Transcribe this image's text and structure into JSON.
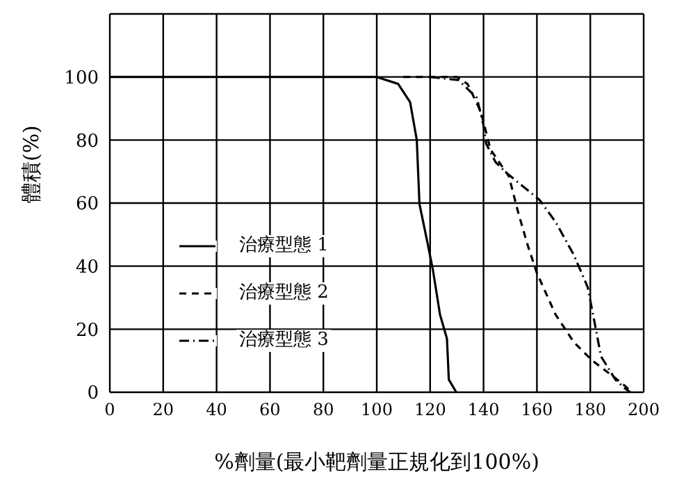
{
  "chart_data": {
    "type": "line",
    "xlabel": "%劑量(最小靶劑量正規化到100%)",
    "ylabel": "體積(%)",
    "xlim": [
      0,
      200
    ],
    "xticks": [
      0,
      20,
      40,
      60,
      80,
      100,
      120,
      140,
      160,
      180,
      200
    ],
    "ylim": [
      0,
      120
    ],
    "yticks": [
      0,
      20,
      40,
      60,
      80,
      100,
      {
        "value": 120,
        "label": null
      }
    ],
    "grid": true,
    "legend": "center left",
    "marker": "none",
    "series": [
      {
        "name": "治療型態 1",
        "color": "#000000",
        "line_style": "solid",
        "x": [
          0,
          100,
          108,
          112.5,
          115,
          116,
          118.5,
          121,
          123.7,
          126.3,
          127,
          129.8
        ],
        "values": [
          100,
          100,
          97.8,
          92,
          80,
          59.7,
          49.5,
          39,
          24.6,
          17,
          4,
          0
        ]
      },
      {
        "name": "治療型態 2",
        "color": "#000000",
        "line_style": "dashed",
        "x": [
          110,
          130,
          134,
          139,
          142.6,
          149.5,
          153,
          156.6,
          160,
          167,
          173.9,
          180.8,
          187.7,
          193,
          195.5
        ],
        "values": [
          100,
          100,
          97.8,
          89,
          77,
          68.5,
          57,
          46.5,
          37.8,
          24.6,
          15.8,
          10,
          5.6,
          2,
          0
        ]
      },
      {
        "name": "治療型態 3",
        "color": "#000000",
        "line_style": "dashdot",
        "x": [
          120,
          130.6,
          137.5,
          140,
          141,
          144.5,
          148,
          161,
          167,
          173.8,
          179,
          181.7,
          184,
          189.4,
          193,
          195
        ],
        "values": [
          100,
          99,
          93.4,
          84.6,
          78.8,
          73,
          70,
          61,
          54,
          43.6,
          33.4,
          21.7,
          11.4,
          4,
          1.2,
          0
        ]
      }
    ]
  }
}
